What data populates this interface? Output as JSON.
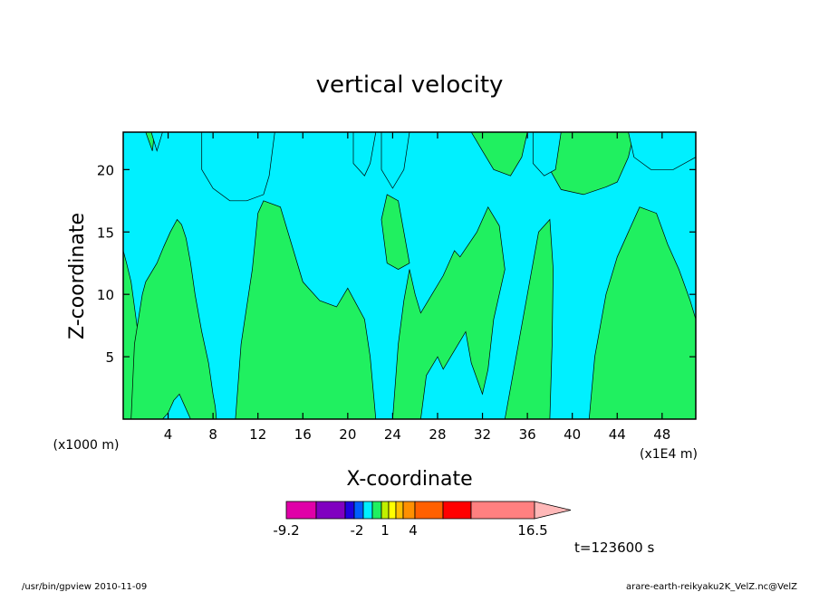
{
  "chart_data": {
    "type": "heatmap",
    "title": "vertical velocity",
    "xlabel": "X-coordinate",
    "ylabel": "Z-coordinate",
    "x_unit_left": "(x1000 m)",
    "x_unit_right": "(x1E4 m)",
    "xlim": [
      0,
      51
    ],
    "ylim": [
      0,
      23
    ],
    "x_ticks": [
      4,
      8,
      12,
      16,
      20,
      24,
      28,
      32,
      36,
      40,
      44,
      48
    ],
    "x_tick_labels": [
      "4",
      "8",
      "12",
      "16",
      "20",
      "24",
      "28",
      "32",
      "36",
      "40",
      "44",
      "48"
    ],
    "y_ticks": [
      5,
      10,
      15,
      20
    ],
    "y_tick_labels": [
      "5",
      "10",
      "15",
      "20"
    ],
    "colorbar": {
      "labels": [
        {
          "value": -9.2,
          "text": "-9.2"
        },
        {
          "value": -2,
          "text": "-2"
        },
        {
          "value": 1,
          "text": "1"
        },
        {
          "value": 4,
          "text": "4"
        },
        {
          "value": 16.5,
          "text": "16.5"
        }
      ],
      "colors": [
        "#e000a8",
        "#8000c0",
        "#2000e0",
        "#0060ff",
        "#00f0ff",
        "#20f060",
        "#c0f000",
        "#ffff00",
        "#ffc000",
        "#ff9000",
        "#ff6000",
        "#ff0000",
        "#ff8080",
        "#ffb8b8"
      ]
    },
    "regions": [
      {
        "value_range": "0 to 1",
        "color": "#00f0ff"
      },
      {
        "value_range": "1 to 2",
        "color": "#20f060"
      }
    ],
    "time_label": "t=123600 s",
    "contour_fields": [
      {
        "name": "green-1",
        "x": [
          0,
          0,
          0.3,
          0.7,
          1.0,
          1.3,
          1.5,
          1.3,
          0.8,
          0.4,
          0
        ],
        "y": [
          23,
          13.5,
          12.5,
          11,
          9,
          7,
          5,
          3,
          0,
          0,
          0
        ]
      },
      {
        "name": "green-2",
        "x": [
          0.7,
          1.0,
          1.7,
          2.0,
          3.0,
          3.6,
          4.2,
          4.8,
          5.2,
          5.6,
          6.0,
          6.4,
          7.0,
          7.6,
          8.0,
          8.2,
          8.3,
          8.0,
          7.5,
          7.0,
          6.5,
          6.0,
          5.5,
          5.0,
          4.5,
          4.0,
          3.5,
          3.0,
          2.4,
          2.0,
          1.5,
          0.7
        ],
        "y": [
          0,
          6.0,
          10,
          11,
          12.5,
          13.8,
          15.0,
          16.0,
          15.6,
          14.5,
          12.5,
          10.0,
          7.0,
          4.5,
          2.0,
          1.0,
          0,
          0,
          0,
          0,
          0,
          0,
          1.0,
          2.0,
          1.5,
          0.5,
          0,
          0,
          0,
          0,
          0,
          0
        ]
      },
      {
        "name": "green-top",
        "x": [
          0,
          51,
          51,
          47.0,
          45.5,
          45.0,
          44.0,
          43.0,
          41.0,
          39.0,
          38.0,
          37.0,
          36.5,
          36.0,
          35.5,
          34.5,
          33.0,
          32.0,
          31.0,
          30.0,
          29.0,
          28.0,
          27.0,
          26.0,
          25.0,
          24.5,
          24.0,
          23.5,
          23.0,
          22.5,
          21.0,
          20.0,
          19.5,
          19.0,
          18.0,
          17.5,
          17.0,
          16.0,
          15.0,
          14.0,
          13.0,
          12.0,
          11.0,
          10.0,
          9.0,
          8.5,
          7.5,
          7.0,
          6.0,
          4.0,
          3.0,
          2.8,
          2.6,
          2.0,
          1.0,
          0.5
        ],
        "y": [
          23,
          23,
          23,
          23,
          23,
          21,
          19,
          18.6,
          18.0,
          18.4,
          20,
          22,
          23,
          23,
          21,
          19.5,
          20,
          21.5,
          23,
          23,
          23,
          23,
          23,
          23,
          23,
          23,
          23,
          23,
          23,
          23,
          23,
          23,
          23,
          23,
          23,
          23,
          23,
          23,
          23,
          23,
          23,
          23,
          23,
          23,
          23,
          23,
          23,
          23,
          23,
          23,
          23,
          23,
          21.5,
          23,
          23,
          23
        ]
      }
    ],
    "footer_left": "/usr/bin/gpview   2010-11-09",
    "footer_right": "arare-earth-reikyaku2K_VelZ.nc@VelZ"
  }
}
